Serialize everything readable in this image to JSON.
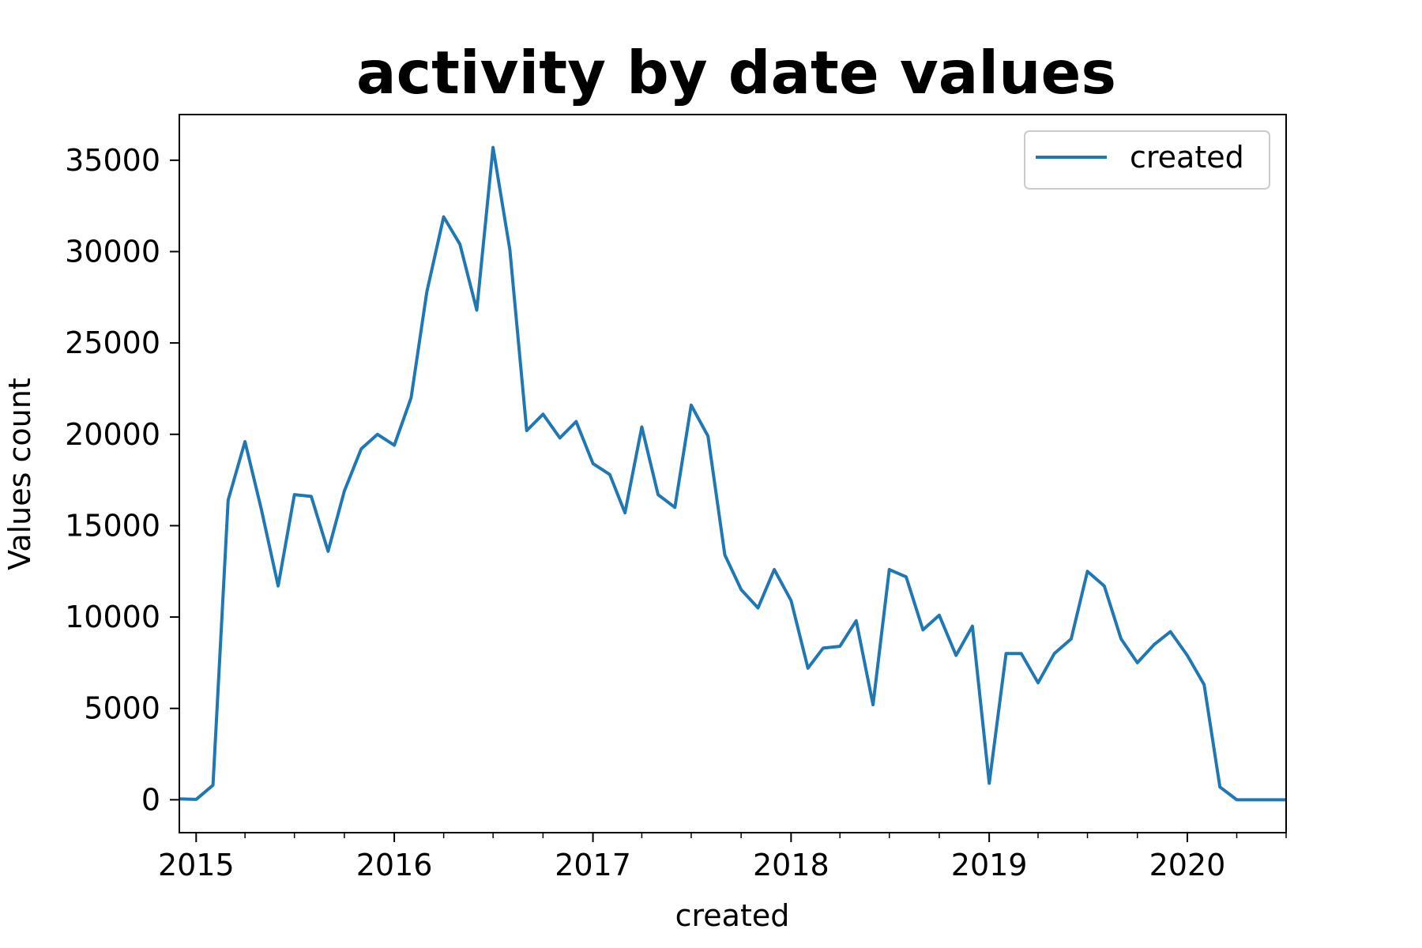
{
  "chart_data": {
    "type": "line",
    "title": "activity by date values",
    "xlabel": "created",
    "ylabel": "Values count",
    "xlim": [
      "2014-12-01",
      "2020-07-01"
    ],
    "ylim": [
      -1800,
      37500
    ],
    "x_ticks": [
      "2015-01-01",
      "2016-01-01",
      "2017-01-01",
      "2018-01-01",
      "2019-01-01",
      "2020-01-01"
    ],
    "x_tick_labels": [
      "2015",
      "2016",
      "2017",
      "2018",
      "2019",
      "2020"
    ],
    "y_ticks": [
      0,
      5000,
      10000,
      15000,
      20000,
      25000,
      30000,
      35000
    ],
    "y_tick_labels": [
      "0",
      "5000",
      "10000",
      "15000",
      "20000",
      "25000",
      "30000",
      "35000"
    ],
    "legend": {
      "position": "upper right",
      "entries": [
        "created"
      ]
    },
    "grid": false,
    "series": [
      {
        "name": "created",
        "color": "#1f77b4",
        "x": [
          "2014-12-01",
          "2015-01-01",
          "2015-02-01",
          "2015-03-01",
          "2015-04-01",
          "2015-05-01",
          "2015-06-01",
          "2015-07-01",
          "2015-08-01",
          "2015-09-01",
          "2015-10-01",
          "2015-11-01",
          "2015-12-01",
          "2016-01-01",
          "2016-02-01",
          "2016-03-01",
          "2016-04-01",
          "2016-05-01",
          "2016-06-01",
          "2016-07-01",
          "2016-08-01",
          "2016-09-01",
          "2016-10-01",
          "2016-11-01",
          "2016-12-01",
          "2017-01-01",
          "2017-02-01",
          "2017-03-01",
          "2017-04-01",
          "2017-05-01",
          "2017-06-01",
          "2017-07-01",
          "2017-08-01",
          "2017-09-01",
          "2017-10-01",
          "2017-11-01",
          "2017-12-01",
          "2018-01-01",
          "2018-02-01",
          "2018-03-01",
          "2018-04-01",
          "2018-05-01",
          "2018-06-01",
          "2018-07-01",
          "2018-08-01",
          "2018-09-01",
          "2018-10-01",
          "2018-11-01",
          "2018-12-01",
          "2019-01-01",
          "2019-02-01",
          "2019-03-01",
          "2019-04-01",
          "2019-05-01",
          "2019-06-01",
          "2019-07-01",
          "2019-08-01",
          "2019-09-01",
          "2019-10-01",
          "2019-11-01",
          "2019-12-01",
          "2020-01-01",
          "2020-02-01",
          "2020-03-01",
          "2020-04-01",
          "2020-05-01",
          "2020-06-01",
          "2020-07-01"
        ],
        "values": [
          50,
          20,
          800,
          16400,
          19600,
          15900,
          11700,
          16700,
          16600,
          13600,
          16900,
          19200,
          20000,
          19400,
          22000,
          27800,
          31900,
          30400,
          26800,
          35700,
          30100,
          20200,
          21100,
          19800,
          20700,
          18400,
          17800,
          15700,
          20400,
          16700,
          16000,
          21600,
          19900,
          13400,
          11500,
          10500,
          12600,
          10900,
          7200,
          8300,
          8400,
          9800,
          5200,
          12600,
          12200,
          9300,
          10100,
          7900,
          9500,
          900,
          8000,
          8000,
          6400,
          8000,
          8800,
          12500,
          11700,
          8800,
          7500,
          8500,
          9200,
          7900,
          6300,
          700,
          0,
          0,
          0,
          0
        ]
      }
    ]
  }
}
